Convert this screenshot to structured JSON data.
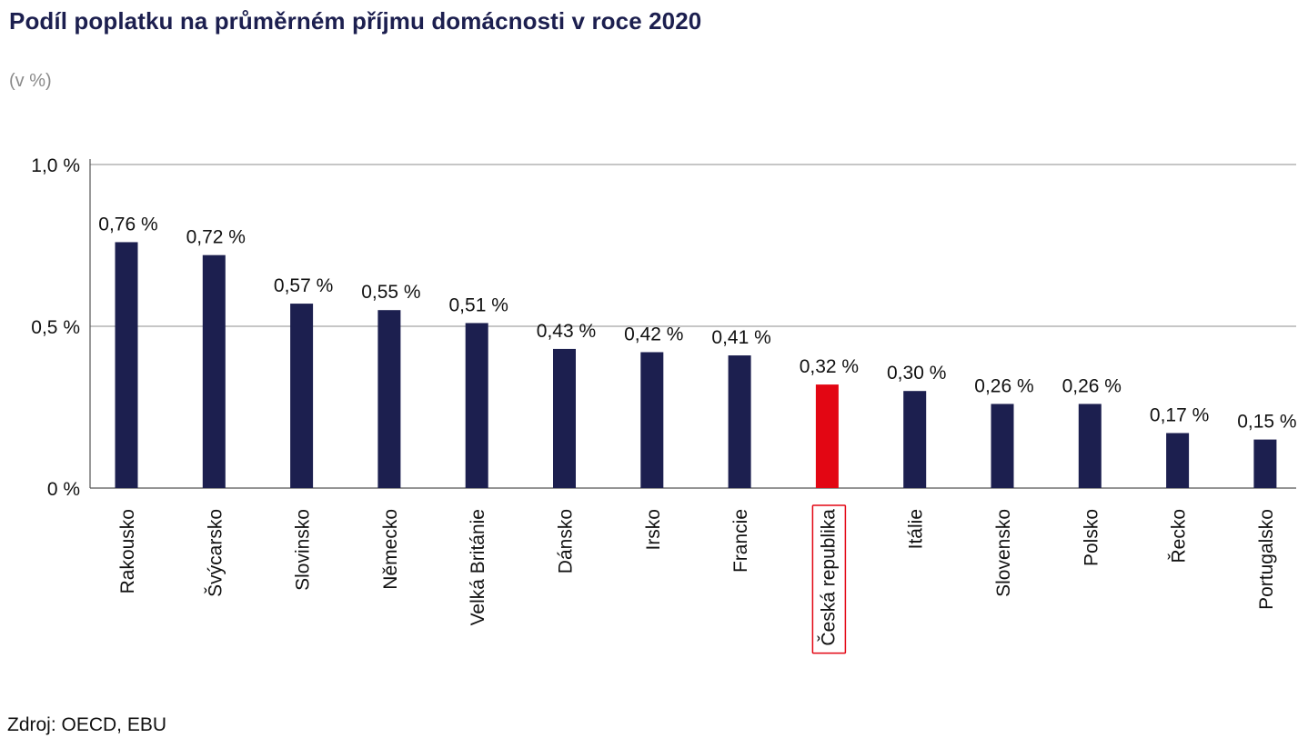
{
  "title": "Podíl poplatku na průměrném příjmu domácnosti v roce 2020",
  "subtitle": "(v %)",
  "source": "Zdroj: OECD, EBU",
  "colors": {
    "bar": "#1c1f4f",
    "highlight": "#e30613",
    "gridline": "#8c8c8c",
    "highlight_box": "#e30613"
  },
  "chart_data": {
    "type": "bar",
    "categories": [
      "Rakousko",
      "Švýcarsko",
      "Slovinsko",
      "Německo",
      "Velká Británie",
      "Dánsko",
      "Irsko",
      "Francie",
      "Česká republika",
      "Itálie",
      "Slovensko",
      "Polsko",
      "Řecko",
      "Portugalsko"
    ],
    "values": [
      0.76,
      0.72,
      0.57,
      0.55,
      0.51,
      0.43,
      0.42,
      0.41,
      0.32,
      0.3,
      0.26,
      0.26,
      0.17,
      0.15
    ],
    "data_labels": [
      "0,76 %",
      "0,72 %",
      "0,57 %",
      "0,55 %",
      "0,51 %",
      "0,43 %",
      "0,42 %",
      "0,41 %",
      "0,32 %",
      "0,30 %",
      "0,26 %",
      "0,26 %",
      "0,17 %",
      "0,15 %"
    ],
    "highlighted_category": "Česká republika",
    "yticks": [
      0,
      0.5,
      1.0
    ],
    "ytick_labels": [
      "0 %",
      "0,5 %",
      "1,0 %"
    ],
    "ylim": [
      0,
      1.0
    ],
    "grid": true,
    "legend": "none"
  }
}
